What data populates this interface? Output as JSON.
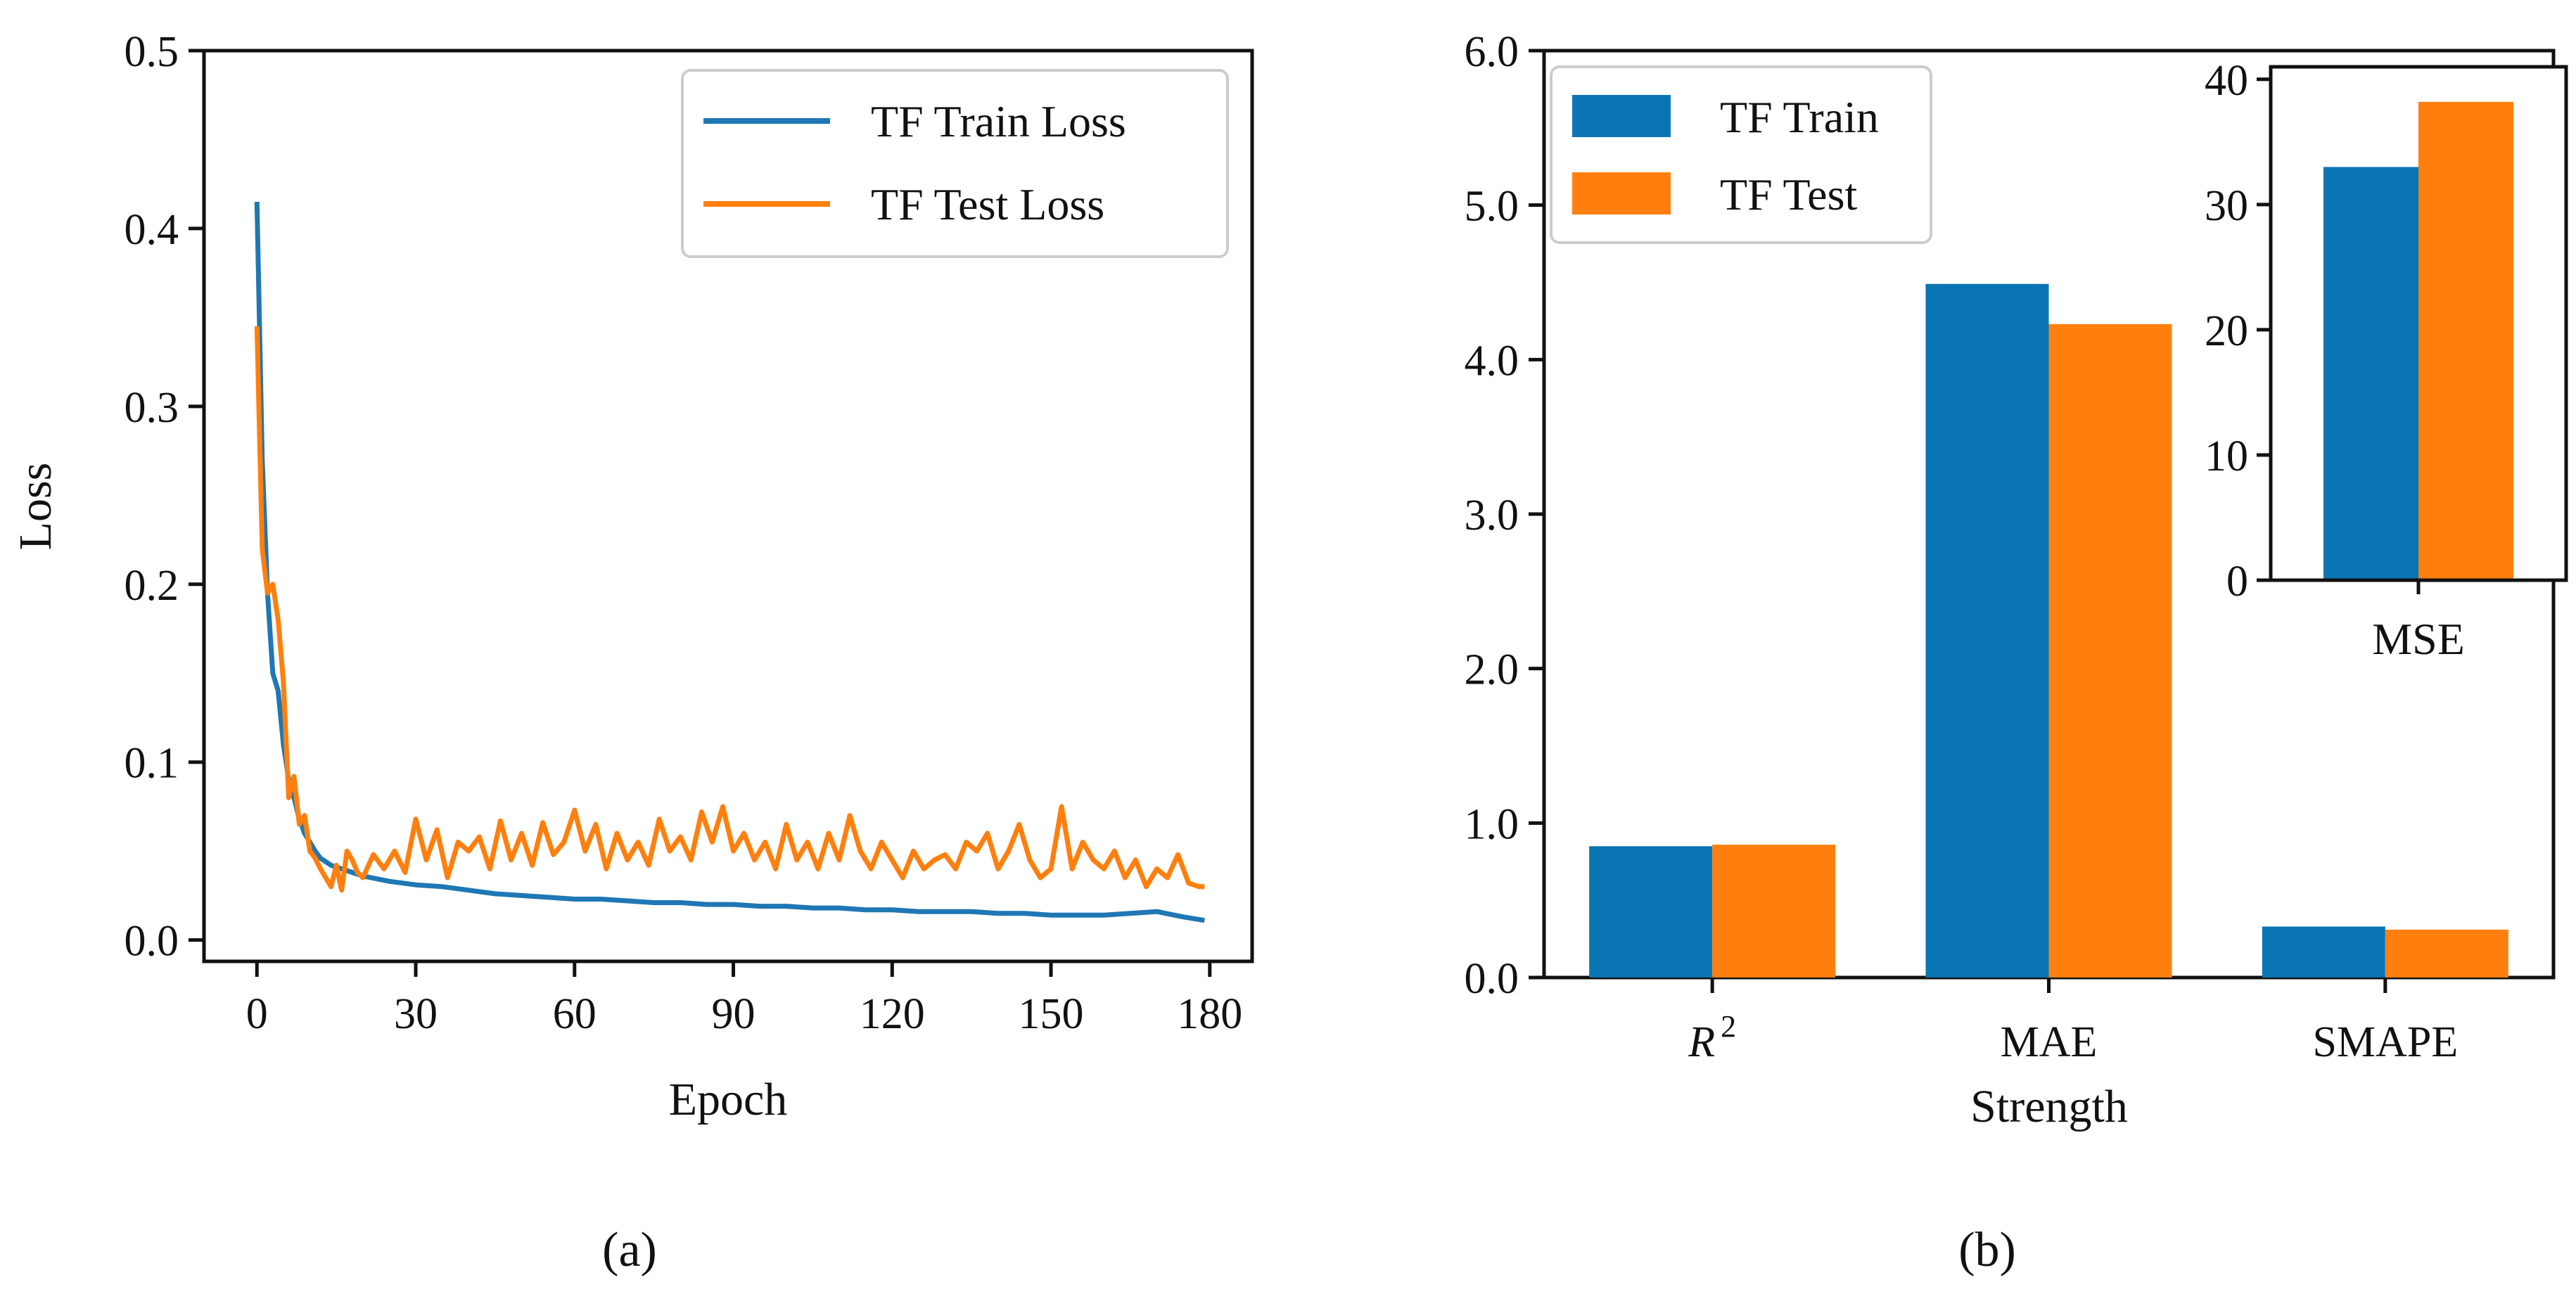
{
  "chart_data": [
    {
      "type": "line",
      "panel_label": "(a)",
      "xlabel": "Epoch",
      "ylabel": "Loss",
      "xlim": [
        -10,
        188
      ],
      "ylim": [
        -0.012,
        0.5
      ],
      "xticks": [
        0,
        30,
        60,
        90,
        120,
        150,
        180
      ],
      "xtick_labels": [
        "0",
        "30",
        "60",
        "90",
        "120",
        "150",
        "180"
      ],
      "yticks": [
        0.0,
        0.1,
        0.2,
        0.3,
        0.4,
        0.5
      ],
      "ytick_labels": [
        "0.0",
        "0.1",
        "0.2",
        "0.3",
        "0.4",
        "0.5"
      ],
      "grid": false,
      "legend_position": "top-right",
      "series": [
        {
          "name": "TF Train Loss",
          "color": "#1f77b4",
          "points": [
            [
              0,
              0.415
            ],
            [
              1,
              0.27
            ],
            [
              2,
              0.195
            ],
            [
              3,
              0.15
            ],
            [
              4,
              0.14
            ],
            [
              5,
              0.11
            ],
            [
              6,
              0.09
            ],
            [
              7,
              0.08
            ],
            [
              8,
              0.068
            ],
            [
              9,
              0.06
            ],
            [
              10,
              0.055
            ],
            [
              11,
              0.05
            ],
            [
              12,
              0.046
            ],
            [
              13,
              0.044
            ],
            [
              14,
              0.042
            ],
            [
              15,
              0.041
            ],
            [
              16,
              0.04
            ],
            [
              17,
              0.039
            ],
            [
              18,
              0.038
            ],
            [
              19,
              0.037
            ],
            [
              20,
              0.036
            ],
            [
              25,
              0.033
            ],
            [
              30,
              0.031
            ],
            [
              35,
              0.03
            ],
            [
              40,
              0.028
            ],
            [
              45,
              0.026
            ],
            [
              50,
              0.025
            ],
            [
              55,
              0.024
            ],
            [
              60,
              0.023
            ],
            [
              65,
              0.023
            ],
            [
              70,
              0.022
            ],
            [
              75,
              0.021
            ],
            [
              80,
              0.021
            ],
            [
              85,
              0.02
            ],
            [
              90,
              0.02
            ],
            [
              95,
              0.019
            ],
            [
              100,
              0.019
            ],
            [
              105,
              0.018
            ],
            [
              110,
              0.018
            ],
            [
              115,
              0.017
            ],
            [
              120,
              0.017
            ],
            [
              125,
              0.016
            ],
            [
              130,
              0.016
            ],
            [
              135,
              0.016
            ],
            [
              140,
              0.015
            ],
            [
              145,
              0.015
            ],
            [
              150,
              0.014
            ],
            [
              155,
              0.014
            ],
            [
              160,
              0.014
            ],
            [
              165,
              0.015
            ],
            [
              170,
              0.016
            ],
            [
              175,
              0.013
            ],
            [
              179,
              0.011
            ]
          ]
        },
        {
          "name": "TF Test Loss",
          "color": "#ff7f0e",
          "points": [
            [
              0,
              0.345
            ],
            [
              1,
              0.22
            ],
            [
              2,
              0.195
            ],
            [
              3,
              0.2
            ],
            [
              4,
              0.18
            ],
            [
              5,
              0.145
            ],
            [
              6,
              0.08
            ],
            [
              7,
              0.092
            ],
            [
              8,
              0.065
            ],
            [
              9,
              0.07
            ],
            [
              10,
              0.05
            ],
            [
              11,
              0.046
            ],
            [
              12,
              0.04
            ],
            [
              13,
              0.035
            ],
            [
              14,
              0.03
            ],
            [
              15,
              0.042
            ],
            [
              16,
              0.028
            ],
            [
              17,
              0.05
            ],
            [
              18,
              0.045
            ],
            [
              19,
              0.038
            ],
            [
              20,
              0.035
            ],
            [
              22,
              0.048
            ],
            [
              24,
              0.04
            ],
            [
              26,
              0.05
            ],
            [
              28,
              0.038
            ],
            [
              30,
              0.068
            ],
            [
              32,
              0.045
            ],
            [
              34,
              0.062
            ],
            [
              36,
              0.035
            ],
            [
              38,
              0.055
            ],
            [
              40,
              0.05
            ],
            [
              42,
              0.058
            ],
            [
              44,
              0.04
            ],
            [
              46,
              0.067
            ],
            [
              48,
              0.045
            ],
            [
              50,
              0.06
            ],
            [
              52,
              0.042
            ],
            [
              54,
              0.066
            ],
            [
              56,
              0.048
            ],
            [
              58,
              0.055
            ],
            [
              60,
              0.073
            ],
            [
              62,
              0.05
            ],
            [
              64,
              0.065
            ],
            [
              66,
              0.04
            ],
            [
              68,
              0.06
            ],
            [
              70,
              0.045
            ],
            [
              72,
              0.055
            ],
            [
              74,
              0.042
            ],
            [
              76,
              0.068
            ],
            [
              78,
              0.05
            ],
            [
              80,
              0.058
            ],
            [
              82,
              0.045
            ],
            [
              84,
              0.072
            ],
            [
              86,
              0.055
            ],
            [
              88,
              0.075
            ],
            [
              90,
              0.05
            ],
            [
              92,
              0.06
            ],
            [
              94,
              0.045
            ],
            [
              96,
              0.055
            ],
            [
              98,
              0.04
            ],
            [
              100,
              0.065
            ],
            [
              102,
              0.045
            ],
            [
              104,
              0.055
            ],
            [
              106,
              0.04
            ],
            [
              108,
              0.06
            ],
            [
              110,
              0.045
            ],
            [
              112,
              0.07
            ],
            [
              114,
              0.05
            ],
            [
              116,
              0.04
            ],
            [
              118,
              0.055
            ],
            [
              120,
              0.045
            ],
            [
              122,
              0.035
            ],
            [
              124,
              0.05
            ],
            [
              126,
              0.04
            ],
            [
              128,
              0.045
            ],
            [
              130,
              0.048
            ],
            [
              132,
              0.04
            ],
            [
              134,
              0.055
            ],
            [
              136,
              0.05
            ],
            [
              138,
              0.06
            ],
            [
              140,
              0.04
            ],
            [
              142,
              0.05
            ],
            [
              144,
              0.065
            ],
            [
              146,
              0.045
            ],
            [
              148,
              0.035
            ],
            [
              150,
              0.04
            ],
            [
              152,
              0.075
            ],
            [
              154,
              0.04
            ],
            [
              156,
              0.055
            ],
            [
              158,
              0.045
            ],
            [
              160,
              0.04
            ],
            [
              162,
              0.05
            ],
            [
              164,
              0.035
            ],
            [
              166,
              0.045
            ],
            [
              168,
              0.03
            ],
            [
              170,
              0.04
            ],
            [
              172,
              0.035
            ],
            [
              174,
              0.048
            ],
            [
              176,
              0.032
            ],
            [
              178,
              0.03
            ],
            [
              179,
              0.03
            ]
          ]
        }
      ]
    },
    {
      "type": "bar",
      "panel_label": "(b)",
      "categories": [
        "R2",
        "MAE",
        "SMAPE"
      ],
      "category_labels": [
        {
          "base": "R",
          "sup": "2"
        },
        {
          "base": "MAE"
        },
        {
          "base": "SMAPE"
        }
      ],
      "xlabel": "Strength",
      "ylim": [
        0,
        6.0
      ],
      "yticks": [
        0.0,
        1.0,
        2.0,
        3.0,
        4.0,
        5.0,
        6.0
      ],
      "ytick_labels": [
        "0.0",
        "1.0",
        "2.0",
        "3.0",
        "4.0",
        "5.0",
        "6.0"
      ],
      "grid": false,
      "legend_position": "top-left",
      "series": [
        {
          "name": "TF Train",
          "color": "#0a75b4",
          "values": [
            0.85,
            4.49,
            0.33
          ]
        },
        {
          "name": "TF Test",
          "color": "#ff7f0e",
          "values": [
            0.86,
            4.23,
            0.31
          ]
        }
      ],
      "inset": {
        "type": "bar",
        "categories": [
          "MSE"
        ],
        "ylim": [
          0,
          41
        ],
        "yticks": [
          0,
          10,
          20,
          30,
          40
        ],
        "ytick_labels": [
          "0",
          "10",
          "20",
          "30",
          "40"
        ],
        "series": [
          {
            "name": "TF Train",
            "color": "#0a75b4",
            "values": [
              33.0
            ]
          },
          {
            "name": "TF Test",
            "color": "#ff7f0e",
            "values": [
              38.2
            ]
          }
        ]
      }
    }
  ]
}
